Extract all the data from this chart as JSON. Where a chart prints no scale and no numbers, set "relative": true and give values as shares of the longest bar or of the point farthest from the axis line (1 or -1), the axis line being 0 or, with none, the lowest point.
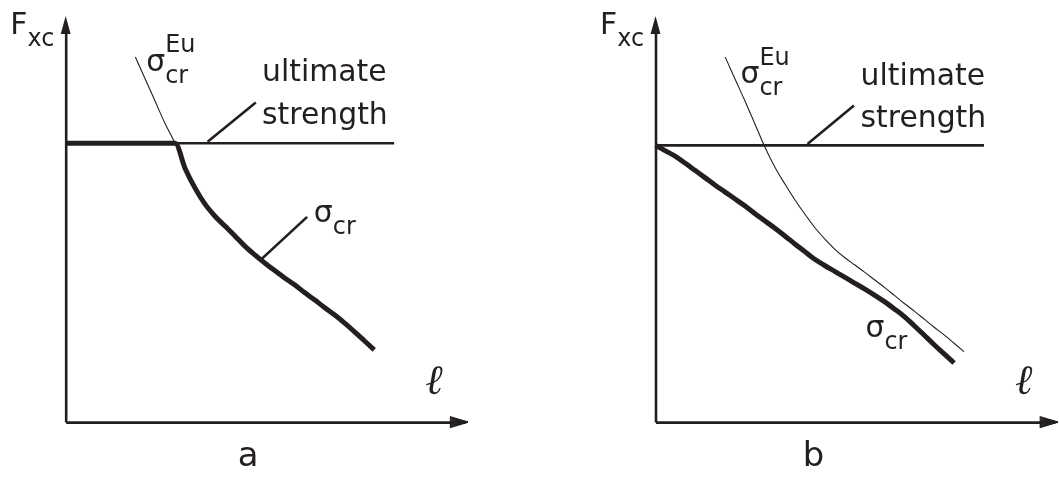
{
  "chart_data": [
    {
      "type": "line",
      "title": "a",
      "xlabel": "ℓ",
      "ylabel": "F$_{xc}$",
      "relative": true,
      "tick_labels": false,
      "categories": [
        null,
        null,
        null,
        null,
        null,
        null,
        null,
        null,
        null,
        null,
        null,
        null,
        null,
        null,
        null,
        null,
        null,
        null,
        null,
        null,
        null,
        null,
        null,
        null,
        null,
        null,
        null,
        null,
        null,
        null,
        null,
        null,
        null,
        null,
        null,
        null,
        null,
        null,
        null,
        null
      ],
      "series": [
        {
          "name": "σ$^{Eu}$$_{cr}$",
          "color": "#231f20",
          "values": [
            null,
            null,
            null,
            null,
            null,
            null,
            null,
            1.0,
            0.939,
            0.878,
            0.817,
            0.764,
            null,
            null,
            null,
            null,
            null,
            null,
            null,
            null,
            null,
            null,
            null,
            null,
            null,
            null,
            null,
            null,
            null,
            null,
            null,
            null,
            null,
            null,
            null,
            null,
            null,
            null,
            null,
            null
          ]
        },
        {
          "name": "ultimate strength",
          "color": "#231f20",
          "values": [
            0.764,
            0.764,
            0.764,
            0.764,
            0.764,
            0.764,
            0.764,
            0.764,
            0.764,
            0.764,
            0.764,
            0.764,
            0.764,
            0.764,
            0.764,
            0.764,
            0.764,
            0.764,
            0.764,
            0.764,
            0.764,
            0.764,
            0.764,
            0.764,
            0.764,
            0.764,
            0.764,
            0.764,
            0.764,
            0.764,
            0.764,
            0.764,
            0.764,
            0.764,
            null,
            null,
            null,
            null,
            null,
            null
          ]
        },
        {
          "name": "σ$_{cr}$",
          "color": "#231f20",
          "values": [
            0.764,
            0.764,
            0.764,
            0.764,
            0.764,
            0.764,
            0.764,
            0.764,
            0.764,
            0.764,
            0.764,
            0.764,
            0.695,
            0.641,
            0.597,
            0.564,
            0.537,
            0.51,
            0.482,
            0.458,
            0.436,
            0.415,
            0.395,
            0.376,
            0.355,
            0.335,
            0.314,
            0.294,
            0.272,
            0.248,
            0.223,
            0.198,
            null,
            null,
            null,
            null,
            null,
            null,
            null,
            null
          ]
        }
      ]
    },
    {
      "type": "line",
      "title": "b",
      "xlabel": "ℓ",
      "ylabel": "F$_{xc}$",
      "relative": true,
      "tick_labels": false,
      "categories": [
        null,
        null,
        null,
        null,
        null,
        null,
        null,
        null,
        null,
        null,
        null,
        null,
        null,
        null,
        null,
        null,
        null,
        null,
        null,
        null,
        null,
        null,
        null,
        null,
        null,
        null,
        null,
        null,
        null,
        null,
        null,
        null,
        null,
        null,
        null,
        null,
        null,
        null,
        null,
        null
      ],
      "series": [
        {
          "name": "σ$^{Eu}$$_{cr}$",
          "color": "#231f20",
          "values": [
            null,
            null,
            null,
            null,
            null,
            null,
            null,
            1.0,
            0.939,
            0.879,
            0.816,
            0.753,
            0.698,
            0.652,
            0.609,
            0.57,
            0.533,
            0.502,
            0.474,
            0.451,
            0.431,
            0.411,
            0.39,
            0.369,
            0.347,
            0.325,
            0.304,
            0.282,
            0.26,
            0.239,
            0.216,
            0.193,
            null,
            null,
            null,
            null,
            null,
            null,
            null,
            null
          ]
        },
        {
          "name": "ultimate strength",
          "color": "#231f20",
          "values": [
            0.758,
            0.758,
            0.758,
            0.758,
            0.758,
            0.758,
            0.758,
            0.758,
            0.758,
            0.758,
            0.758,
            0.758,
            0.758,
            0.758,
            0.758,
            0.758,
            0.758,
            0.758,
            0.758,
            0.758,
            0.758,
            0.758,
            0.758,
            0.758,
            0.758,
            0.758,
            0.758,
            0.758,
            0.758,
            0.758,
            0.758,
            0.758,
            0.758,
            0.758,
            null,
            null,
            null,
            null,
            null,
            null
          ]
        },
        {
          "name": "σ$_{cr}$",
          "color": "#231f20",
          "values": [
            0.758,
            0.743,
            0.728,
            0.709,
            0.689,
            0.669,
            0.649,
            0.63,
            0.611,
            0.592,
            0.571,
            0.551,
            0.531,
            0.51,
            0.488,
            0.467,
            0.446,
            0.429,
            0.413,
            0.397,
            0.381,
            0.365,
            0.348,
            0.33,
            0.31,
            0.289,
            0.264,
            0.238,
            0.212,
            0.187,
            0.162,
            null,
            null,
            null,
            null,
            null,
            null,
            null,
            null,
            null
          ]
        }
      ]
    }
  ]
}
